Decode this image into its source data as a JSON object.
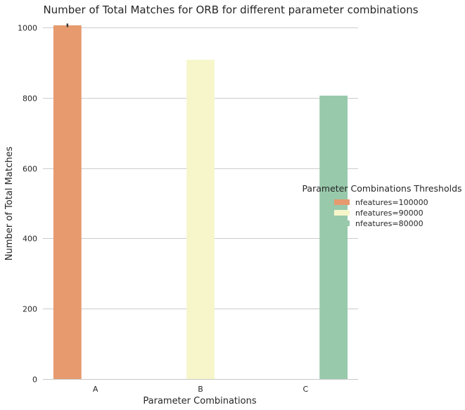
{
  "chart_data": {
    "type": "bar",
    "title": "Number of Total Matches for ORB for different parameter combinations",
    "xlabel": "Parameter Combinations",
    "ylabel": "Number of Total Matches",
    "categories": [
      "A",
      "B",
      "C"
    ],
    "ylim": [
      0,
      1050
    ],
    "yticks": [
      0,
      200,
      400,
      600,
      800,
      1000
    ],
    "grid": "horizontal",
    "legend": {
      "title": "Parameter Combinations Thresholds",
      "placement": "right"
    },
    "series": [
      {
        "name": "nfeatures=100000",
        "color": "#e69a6e",
        "values": [
          1006,
          null,
          null
        ],
        "error": [
          5,
          null,
          null
        ]
      },
      {
        "name": "nfeatures=90000",
        "color": "#f7f6cb",
        "values": [
          null,
          908,
          null
        ],
        "error": [
          3,
          null,
          null
        ]
      },
      {
        "name": "nfeatures=80000",
        "color": "#98c9ab",
        "values": [
          null,
          null,
          806
        ],
        "error": [
          null,
          null,
          null
        ]
      }
    ]
  }
}
